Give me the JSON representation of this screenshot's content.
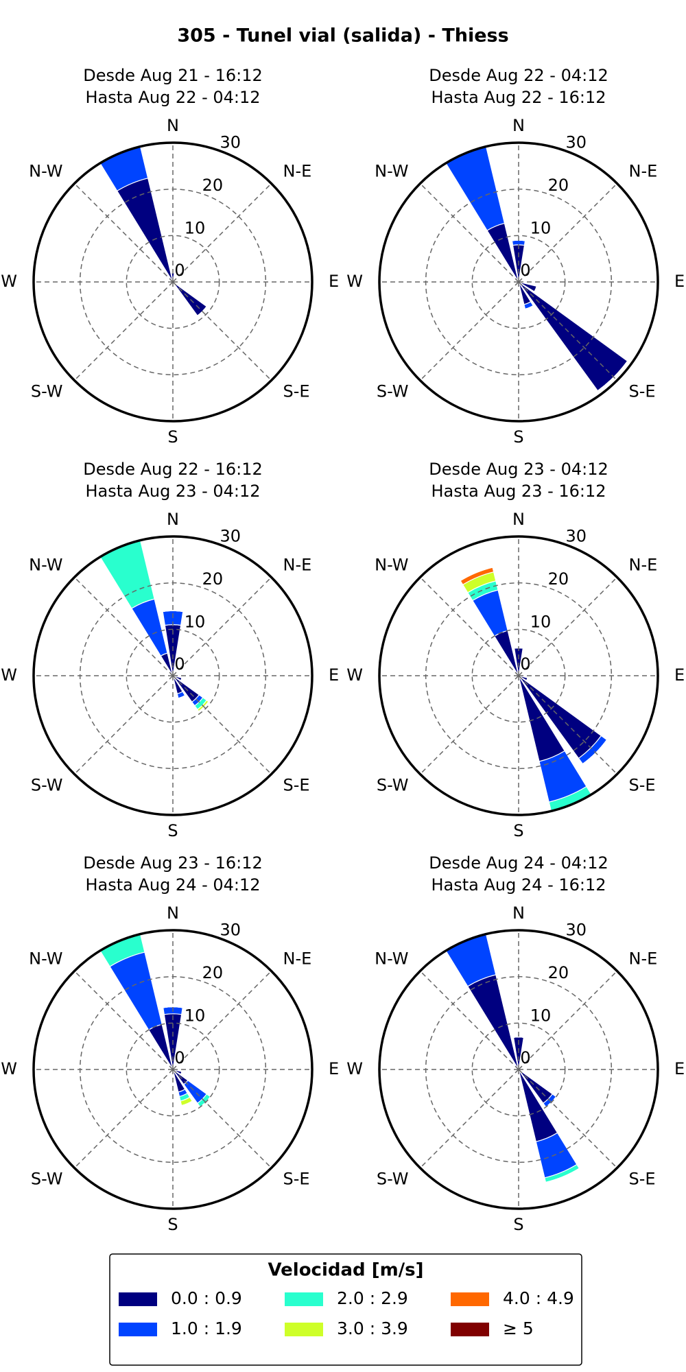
{
  "title": "305 - Tunel vial (salida) - Thiess",
  "legend_title": "Velocidad [m/s]",
  "chart_data": [
    {
      "type": "windrose",
      "title": "Desde Aug 21 - 16:12",
      "subtitle": "Hasta Aug 22 - 04:12",
      "x": [
        0,
        135,
        337.5
      ],
      "ylim": [
        0,
        30
      ],
      "yticks": [
        0,
        10,
        20,
        30
      ],
      "grid": true,
      "xticks": [
        {
          "value": 0,
          "label": "N"
        },
        {
          "value": 45,
          "label": "N-E"
        },
        {
          "value": 90,
          "label": "E"
        },
        {
          "value": 135,
          "label": "S-E"
        },
        {
          "value": 180,
          "label": "S"
        },
        {
          "value": 225,
          "label": "S-W"
        },
        {
          "value": 270,
          "label": "W"
        },
        {
          "value": 315,
          "label": "N-W"
        }
      ],
      "series": [
        {
          "name": "0.0 : 0.9",
          "color": "#000080",
          "values": [
            2,
            9,
            23
          ]
        },
        {
          "name": "1.0 : 1.9",
          "color": "#0044ff",
          "values": [
            0,
            0,
            7
          ]
        },
        {
          "name": "2.0 : 2.9",
          "color": "#29ffce",
          "values": [
            0,
            0,
            0
          ]
        },
        {
          "name": "3.0 : 3.9",
          "color": "#ceff29",
          "values": [
            0,
            0,
            0
          ]
        },
        {
          "name": "4.0 : 4.9",
          "color": "#ff6800",
          "values": [
            0,
            0,
            0
          ]
        },
        {
          "name": "≥ 5",
          "color": "#800000",
          "values": [
            0,
            0,
            0
          ]
        }
      ]
    },
    {
      "type": "windrose",
      "title": "Desde Aug 22 - 04:12",
      "subtitle": "Hasta Aug 22 - 16:12",
      "x": [
        0,
        112.5,
        135,
        157.5,
        337.5
      ],
      "ylim": [
        0,
        30
      ],
      "yticks": [
        0,
        10,
        20,
        30
      ],
      "grid": true,
      "xticks": [
        {
          "value": 0,
          "label": "N"
        },
        {
          "value": 45,
          "label": "N-E"
        },
        {
          "value": 90,
          "label": "E"
        },
        {
          "value": 135,
          "label": "S-E"
        },
        {
          "value": 180,
          "label": "S"
        },
        {
          "value": 225,
          "label": "S-W"
        },
        {
          "value": 270,
          "label": "W"
        },
        {
          "value": 315,
          "label": "N-W"
        }
      ],
      "series": [
        {
          "name": "0.0 : 0.9",
          "color": "#000080",
          "values": [
            8,
            4,
            29,
            5,
            13
          ]
        },
        {
          "name": "1.0 : 1.9",
          "color": "#0044ff",
          "values": [
            1,
            0,
            0,
            1,
            17
          ]
        },
        {
          "name": "2.0 : 2.9",
          "color": "#29ffce",
          "values": [
            0,
            0,
            0,
            0,
            0
          ]
        },
        {
          "name": "3.0 : 3.9",
          "color": "#ceff29",
          "values": [
            0,
            0,
            0,
            0,
            0
          ]
        },
        {
          "name": "4.0 : 4.9",
          "color": "#ff6800",
          "values": [
            0,
            0,
            0,
            0,
            0
          ]
        },
        {
          "name": "≥ 5",
          "color": "#800000",
          "values": [
            0,
            0,
            0,
            0,
            0
          ]
        }
      ]
    },
    {
      "type": "windrose",
      "title": "Desde Aug 22 - 16:12",
      "subtitle": "Hasta Aug 23 - 04:12",
      "x": [
        0,
        112.5,
        135,
        157.5,
        337.5
      ],
      "ylim": [
        0,
        30
      ],
      "yticks": [
        0,
        10,
        20,
        30
      ],
      "grid": true,
      "xticks": [
        {
          "value": 0,
          "label": "N"
        },
        {
          "value": 45,
          "label": "N-E"
        },
        {
          "value": 90,
          "label": "E"
        },
        {
          "value": 135,
          "label": "S-E"
        },
        {
          "value": 180,
          "label": "S"
        },
        {
          "value": 225,
          "label": "S-W"
        },
        {
          "value": 270,
          "label": "W"
        },
        {
          "value": 315,
          "label": "N-W"
        }
      ],
      "series": [
        {
          "name": "0.0 : 0.9",
          "color": "#000080",
          "values": [
            11,
            2,
            7,
            4,
            5
          ]
        },
        {
          "name": "1.0 : 1.9",
          "color": "#0044ff",
          "values": [
            3,
            0,
            1,
            1,
            12
          ]
        },
        {
          "name": "2.0 : 2.9",
          "color": "#29ffce",
          "values": [
            0,
            0,
            1,
            0,
            13
          ]
        },
        {
          "name": "3.0 : 3.9",
          "color": "#ceff29",
          "values": [
            0,
            0,
            0.5,
            0,
            0
          ]
        },
        {
          "name": "4.0 : 4.9",
          "color": "#ff6800",
          "values": [
            0,
            0,
            0,
            0,
            0
          ]
        },
        {
          "name": "≥ 5",
          "color": "#800000",
          "values": [
            0,
            0,
            0,
            0,
            0
          ]
        }
      ]
    },
    {
      "type": "windrose",
      "title": "Desde Aug 23 - 04:12",
      "subtitle": "Hasta Aug 23 - 16:12",
      "x": [
        0,
        112.5,
        135,
        157.5,
        337.5
      ],
      "ylim": [
        0,
        30
      ],
      "yticks": [
        0,
        10,
        20,
        30
      ],
      "grid": true,
      "xticks": [
        {
          "value": 0,
          "label": "N"
        },
        {
          "value": 45,
          "label": "N-E"
        },
        {
          "value": 90,
          "label": "E"
        },
        {
          "value": 135,
          "label": "S-E"
        },
        {
          "value": 180,
          "label": "S"
        },
        {
          "value": 225,
          "label": "S-W"
        },
        {
          "value": 270,
          "label": "W"
        },
        {
          "value": 315,
          "label": "N-W"
        }
      ],
      "series": [
        {
          "name": "0.0 : 0.9",
          "color": "#000080",
          "values": [
            6,
            2,
            22,
            19,
            10
          ]
        },
        {
          "name": "1.0 : 1.9",
          "color": "#0044ff",
          "values": [
            0,
            0,
            1.5,
            9,
            9
          ]
        },
        {
          "name": "2.0 : 2.9",
          "color": "#29ffce",
          "values": [
            0,
            0,
            0,
            2,
            2
          ]
        },
        {
          "name": "3.0 : 3.9",
          "color": "#ceff29",
          "values": [
            0,
            0,
            0,
            0,
            2
          ]
        },
        {
          "name": "4.0 : 4.9",
          "color": "#ff6800",
          "values": [
            0,
            0,
            0,
            0,
            1
          ]
        },
        {
          "name": "≥ 5",
          "color": "#800000",
          "values": [
            0,
            0,
            0,
            0,
            0
          ]
        }
      ]
    },
    {
      "type": "windrose",
      "title": "Desde Aug 23 - 16:12",
      "subtitle": "Hasta Aug 24 - 04:12",
      "x": [
        0,
        112.5,
        135,
        157.5,
        337.5
      ],
      "ylim": [
        0,
        30
      ],
      "yticks": [
        0,
        10,
        20,
        30
      ],
      "grid": true,
      "xticks": [
        {
          "value": 0,
          "label": "N"
        },
        {
          "value": 45,
          "label": "N-E"
        },
        {
          "value": 90,
          "label": "E"
        },
        {
          "value": 135,
          "label": "S-E"
        },
        {
          "value": 180,
          "label": "S"
        },
        {
          "value": 225,
          "label": "S-W"
        },
        {
          "value": 270,
          "label": "W"
        },
        {
          "value": 315,
          "label": "N-W"
        }
      ],
      "series": [
        {
          "name": "0.0 : 0.9",
          "color": "#000080",
          "values": [
            12,
            2,
            4,
            5,
            10
          ]
        },
        {
          "name": "1.0 : 1.9",
          "color": "#0044ff",
          "values": [
            1.5,
            0,
            5,
            1,
            16
          ]
        },
        {
          "name": "2.0 : 2.9",
          "color": "#29ffce",
          "values": [
            0,
            0,
            1,
            1,
            4
          ]
        },
        {
          "name": "3.0 : 3.9",
          "color": "#ceff29",
          "values": [
            0,
            0,
            0,
            1,
            0
          ]
        },
        {
          "name": "4.0 : 4.9",
          "color": "#ff6800",
          "values": [
            0,
            0,
            0,
            0,
            0
          ]
        },
        {
          "name": "≥ 5",
          "color": "#800000",
          "values": [
            0,
            0,
            0,
            0,
            0
          ]
        }
      ]
    },
    {
      "type": "windrose",
      "title": "Desde Aug 24 - 04:12",
      "subtitle": "Hasta Aug 24 - 16:12",
      "x": [
        0,
        135,
        157.5,
        337.5
      ],
      "ylim": [
        0,
        30
      ],
      "yticks": [
        0,
        10,
        20,
        30
      ],
      "grid": true,
      "xticks": [
        {
          "value": 0,
          "label": "N"
        },
        {
          "value": 45,
          "label": "N-E"
        },
        {
          "value": 90,
          "label": "E"
        },
        {
          "value": 135,
          "label": "S-E"
        },
        {
          "value": 180,
          "label": "S"
        },
        {
          "value": 225,
          "label": "S-W"
        },
        {
          "value": 270,
          "label": "W"
        },
        {
          "value": 315,
          "label": "N-W"
        }
      ],
      "series": [
        {
          "name": "0.0 : 0.9",
          "color": "#000080",
          "values": [
            7,
            9,
            16,
            21
          ]
        },
        {
          "name": "1.0 : 1.9",
          "color": "#0044ff",
          "values": [
            0,
            1,
            8,
            9
          ]
        },
        {
          "name": "2.0 : 2.9",
          "color": "#29ffce",
          "values": [
            0,
            0,
            1,
            0
          ]
        },
        {
          "name": "3.0 : 3.9",
          "color": "#ceff29",
          "values": [
            0,
            0,
            0,
            0
          ]
        },
        {
          "name": "4.0 : 4.9",
          "color": "#ff6800",
          "values": [
            0,
            0,
            0,
            0
          ]
        },
        {
          "name": "≥ 5",
          "color": "#800000",
          "values": [
            0,
            0,
            0,
            0
          ]
        }
      ]
    }
  ]
}
